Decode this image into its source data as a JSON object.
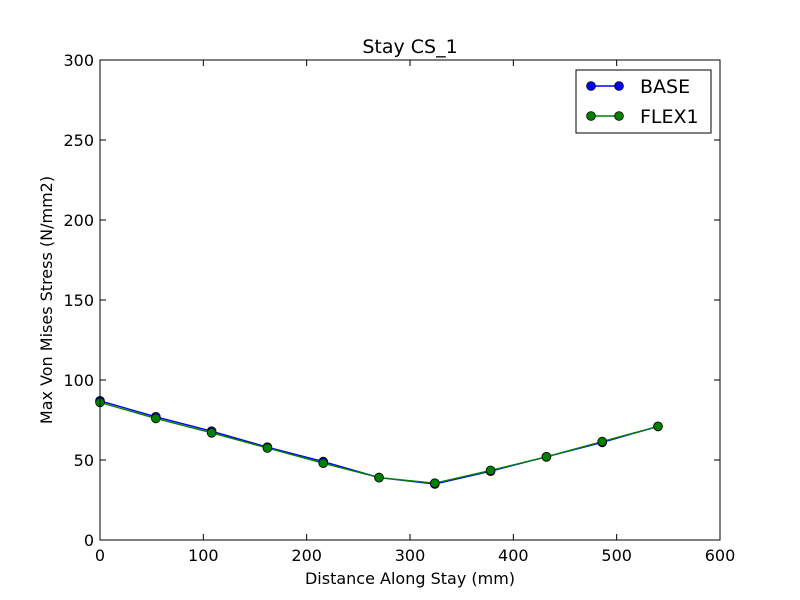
{
  "chart_data": {
    "type": "line",
    "title": "Stay CS_1",
    "xlabel": "Distance Along Stay (mm)",
    "ylabel": "Max Von Mises Stress (N/mm2)",
    "xlim": [
      0,
      600
    ],
    "ylim": [
      0,
      300
    ],
    "xticks": [
      "0",
      "100",
      "200",
      "300",
      "400",
      "500",
      "600"
    ],
    "yticks": [
      "0",
      "50",
      "100",
      "150",
      "200",
      "250",
      "300"
    ],
    "grid": false,
    "legend_position": "top-right",
    "series": [
      {
        "name": "BASE",
        "color": "#0000ff",
        "marker": "circle",
        "x": [
          0,
          54,
          108,
          162,
          216,
          270,
          324,
          378,
          432,
          486,
          540
        ],
        "y": [
          87,
          77,
          68,
          58,
          49,
          39,
          35,
          43,
          52,
          61,
          71
        ]
      },
      {
        "name": "FLEX1",
        "color": "#008000",
        "marker": "circle",
        "x": [
          0,
          54,
          108,
          162,
          216,
          270,
          324,
          378,
          432,
          486,
          540
        ],
        "y": [
          86,
          76,
          67,
          57.5,
          48,
          39,
          35.5,
          43.5,
          52,
          61.5,
          71
        ]
      }
    ]
  }
}
